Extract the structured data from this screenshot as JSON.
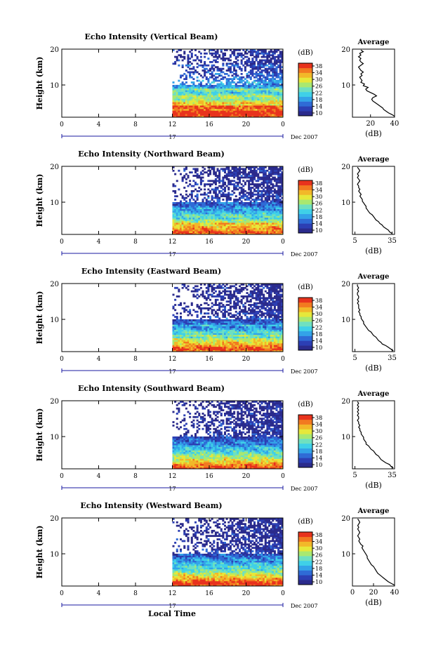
{
  "colors": {
    "colormap": [
      "#2b2b8c",
      "#2c3fb4",
      "#2f6bd6",
      "#33a3e8",
      "#3fd0e8",
      "#6fe0c0",
      "#a9e870",
      "#e6e83a",
      "#f2b829",
      "#f27a20",
      "#e8331d"
    ],
    "axis": "#000000",
    "date_axis": "#1a1aa0"
  },
  "chart_data": [
    {
      "type": "heatmap",
      "title": "Echo Intensity (Vertical Beam)",
      "ylabel": "Height (km)",
      "yticks": [
        "20",
        "10"
      ],
      "xticks": [
        "0",
        "4",
        "8",
        "12",
        "16",
        "20",
        "0"
      ],
      "xlim": [
        0,
        24
      ],
      "ylim": [
        1,
        20
      ],
      "data_start_hour": 12,
      "colorbar": {
        "label": "(dB)",
        "ticks": [
          "38",
          "34",
          "30",
          "26",
          "22",
          "18",
          "14",
          "10"
        ],
        "range": [
          10,
          38
        ]
      },
      "date_row": {
        "label": "17",
        "date": "Dec 2007"
      },
      "profile": {
        "title": "Average",
        "xlabel": "(dB)",
        "xticks": [
          "20",
          "40"
        ],
        "xlim": [
          5,
          40
        ],
        "ylim": [
          1,
          20
        ],
        "yticks": [
          "20",
          "10"
        ],
        "values_db": [
          40,
          38,
          35,
          33,
          31,
          30,
          28,
          26,
          24,
          22,
          21,
          22,
          25,
          23,
          20,
          17,
          16,
          18,
          14,
          15,
          12,
          13,
          12,
          11,
          13,
          12,
          14,
          12,
          11,
          10,
          12,
          14,
          12,
          11,
          12,
          10,
          12,
          11,
          14,
          12
        ]
      },
      "rows_db": [
        36,
        37,
        38,
        37,
        34,
        35,
        36,
        30,
        31,
        28,
        25,
        26,
        27,
        24,
        22,
        23,
        25,
        20,
        18,
        17,
        19,
        18,
        16,
        15,
        14,
        16,
        15,
        13,
        12,
        13,
        15,
        12,
        11,
        13,
        12,
        11,
        12,
        13,
        11,
        12
      ]
    },
    {
      "type": "heatmap",
      "title": "Echo Intensity (Northward Beam)",
      "ylabel": "Height (km)",
      "yticks": [
        "20",
        "10"
      ],
      "xticks": [
        "0",
        "4",
        "8",
        "12",
        "16",
        "20",
        "0"
      ],
      "xlim": [
        0,
        24
      ],
      "ylim": [
        1,
        20
      ],
      "data_start_hour": 12,
      "colorbar": {
        "label": "(dB)",
        "ticks": [
          "38",
          "34",
          "30",
          "26",
          "22",
          "18",
          "14",
          "10"
        ],
        "range": [
          10,
          38
        ]
      },
      "date_row": {
        "label": "17",
        "date": "Dec 2007"
      },
      "profile": {
        "title": "Average",
        "xlabel": "(dB)",
        "xticks": [
          "5",
          "35"
        ],
        "xlim": [
          3,
          37
        ],
        "ylim": [
          1,
          20
        ],
        "yticks": [
          "20",
          "10"
        ],
        "values_db": [
          35,
          33,
          32,
          30,
          28,
          27,
          25,
          24,
          22,
          21,
          20,
          19,
          17,
          16,
          15,
          14,
          14,
          13,
          12,
          11,
          11,
          10,
          9,
          10,
          9,
          8,
          9,
          8,
          8,
          7,
          8,
          9,
          8,
          7,
          8,
          7,
          8,
          9,
          8,
          7
        ]
      },
      "rows_db": [
        35,
        36,
        34,
        33,
        32,
        30,
        31,
        27,
        25,
        22,
        24,
        23,
        21,
        20,
        18,
        19,
        17,
        15,
        16,
        14,
        13,
        14,
        12,
        13,
        12,
        11,
        12,
        11,
        12,
        11,
        11,
        12,
        11,
        11,
        12,
        11,
        11,
        12,
        11,
        11
      ]
    },
    {
      "type": "heatmap",
      "title": "Echo Intensity (Eastward Beam)",
      "ylabel": "Height (km)",
      "yticks": [
        "20",
        "10"
      ],
      "xticks": [
        "0",
        "4",
        "8",
        "12",
        "16",
        "20",
        "0"
      ],
      "xlim": [
        0,
        24
      ],
      "ylim": [
        1,
        20
      ],
      "data_start_hour": 12,
      "colorbar": {
        "label": "(dB)",
        "ticks": [
          "38",
          "34",
          "30",
          "26",
          "22",
          "18",
          "14",
          "10"
        ],
        "range": [
          10,
          38
        ]
      },
      "date_row": {
        "label": "17",
        "date": "Dec 2007"
      },
      "profile": {
        "title": "Average",
        "xlabel": "(dB)",
        "xticks": [
          "5",
          "35"
        ],
        "xlim": [
          3,
          37
        ],
        "ylim": [
          1,
          20
        ],
        "yticks": [
          "20",
          "10"
        ],
        "values_db": [
          36,
          34,
          32,
          30,
          27,
          26,
          24,
          23,
          22,
          20,
          19,
          18,
          16,
          15,
          14,
          13,
          12,
          12,
          11,
          10,
          10,
          9,
          9,
          8,
          9,
          8,
          8,
          8,
          7,
          8,
          7,
          8,
          8,
          7,
          7,
          8,
          7,
          8,
          7,
          7
        ]
      },
      "rows_db": [
        34,
        36,
        35,
        33,
        31,
        30,
        28,
        27,
        24,
        26,
        22,
        23,
        21,
        19,
        18,
        20,
        17,
        16,
        14,
        15,
        13,
        12,
        13,
        12,
        11,
        12,
        11,
        12,
        11,
        11,
        12,
        11,
        11,
        12,
        11,
        11,
        11,
        12,
        11,
        11
      ]
    },
    {
      "type": "heatmap",
      "title": "Echo Intensity (Southward Beam)",
      "ylabel": "Height (km)",
      "yticks": [
        "20",
        "10"
      ],
      "xticks": [
        "0",
        "4",
        "8",
        "12",
        "16",
        "20",
        "0"
      ],
      "xlim": [
        0,
        24
      ],
      "ylim": [
        1,
        20
      ],
      "data_start_hour": 12,
      "colorbar": {
        "label": "(dB)",
        "ticks": [
          "38",
          "34",
          "30",
          "26",
          "22",
          "18",
          "14",
          "10"
        ],
        "range": [
          10,
          38
        ]
      },
      "date_row": {
        "label": "17",
        "date": "Dec 2007"
      },
      "profile": {
        "title": "Average",
        "xlabel": "(dB)",
        "xticks": [
          "5",
          "35"
        ],
        "xlim": [
          3,
          37
        ],
        "ylim": [
          1,
          20
        ],
        "yticks": [
          "20",
          "10"
        ],
        "values_db": [
          36,
          34,
          33,
          30,
          28,
          26,
          25,
          24,
          22,
          21,
          20,
          18,
          17,
          16,
          14,
          14,
          13,
          12,
          12,
          11,
          10,
          10,
          9,
          9,
          8,
          9,
          8,
          8,
          7,
          8,
          8,
          7,
          8,
          7,
          8,
          7,
          8,
          7,
          8,
          7
        ]
      },
      "rows_db": [
        36,
        35,
        34,
        32,
        30,
        29,
        27,
        26,
        25,
        23,
        22,
        21,
        20,
        19,
        17,
        18,
        16,
        15,
        14,
        13,
        13,
        12,
        12,
        11,
        12,
        11,
        12,
        11,
        11,
        12,
        11,
        11,
        12,
        11,
        11,
        11,
        12,
        11,
        11,
        11
      ]
    },
    {
      "type": "heatmap",
      "title": "Echo Intensity (Westward Beam)",
      "ylabel": "Height (km)",
      "yticks": [
        "20",
        "10"
      ],
      "xticks": [
        "0",
        "4",
        "8",
        "12",
        "16",
        "20",
        "0"
      ],
      "xlim": [
        0,
        24
      ],
      "ylim": [
        1,
        20
      ],
      "data_start_hour": 12,
      "colorbar": {
        "label": "(dB)",
        "ticks": [
          "38",
          "34",
          "30",
          "26",
          "22",
          "18",
          "14",
          "10"
        ],
        "range": [
          10,
          38
        ]
      },
      "date_row": {
        "label": "17",
        "date": "Dec 2007"
      },
      "profile": {
        "title": "Average",
        "xlabel": "(dB)",
        "xticks": [
          "0",
          "20",
          "40"
        ],
        "xlim": [
          0,
          40
        ],
        "ylim": [
          1,
          20
        ],
        "yticks": [
          "20",
          "10"
        ],
        "values_db": [
          40,
          37,
          34,
          32,
          30,
          28,
          26,
          24,
          23,
          22,
          21,
          20,
          18,
          17,
          16,
          15,
          14,
          14,
          13,
          12,
          11,
          10,
          9,
          10,
          8,
          7,
          6,
          7,
          6,
          5,
          6,
          7,
          6,
          5,
          6,
          5,
          6,
          7,
          6,
          5
        ]
      },
      "rows_db": [
        36,
        37,
        36,
        34,
        32,
        30,
        29,
        27,
        25,
        24,
        22,
        23,
        21,
        20,
        18,
        19,
        17,
        16,
        15,
        14,
        13,
        13,
        12,
        12,
        11,
        12,
        11,
        12,
        11,
        11,
        12,
        11,
        11,
        11,
        12,
        11,
        11,
        11,
        11,
        11
      ]
    }
  ],
  "footer": {
    "xlabel": "Local Time"
  }
}
